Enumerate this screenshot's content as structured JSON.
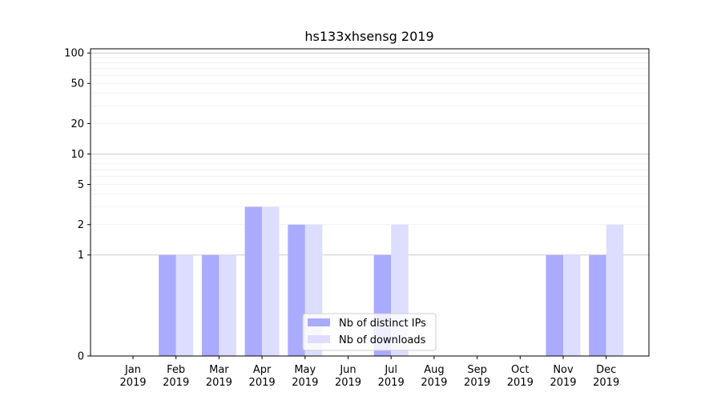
{
  "chart_data": {
    "type": "bar",
    "title": "hs133xhsensg 2019",
    "y_scale": "symlog",
    "ylim": [
      0,
      110
    ],
    "y_ticks": [
      0,
      1,
      2,
      5,
      10,
      20,
      50,
      100
    ],
    "y_tick_labels": [
      "0",
      "1",
      "2",
      "5",
      "10",
      "20",
      "50",
      "100"
    ],
    "categories": [
      "Jan\n2019",
      "Feb\n2019",
      "Mar\n2019",
      "Apr\n2019",
      "May\n2019",
      "Jun\n2019",
      "Jul\n2019",
      "Aug\n2019",
      "Sep\n2019",
      "Oct\n2019",
      "Nov\n2019",
      "Dec\n2019"
    ],
    "series": [
      {
        "name": "Nb of distinct IPs",
        "color": "#aaaaff",
        "values": [
          0,
          1,
          1,
          3,
          2,
          0,
          1,
          0,
          0,
          0,
          1,
          1
        ]
      },
      {
        "name": "Nb of downloads",
        "color": "#ddddff",
        "values": [
          0,
          1,
          1,
          3,
          2,
          0,
          2,
          0,
          0,
          0,
          1,
          2
        ]
      }
    ],
    "grid": true,
    "legend_position": "bottom-center"
  }
}
